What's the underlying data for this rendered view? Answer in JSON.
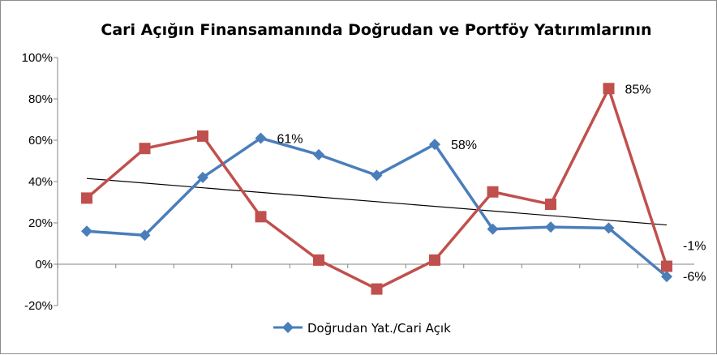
{
  "chart_data": {
    "type": "line",
    "title": "Cari Açığın Finansamanında Doğrudan ve Portföy Yatırımlarının",
    "xlabel": "",
    "ylabel": "",
    "ylim": [
      -20,
      100
    ],
    "yticks": [
      "100%",
      "80%",
      "60%",
      "40%",
      "20%",
      "0%",
      "-20%"
    ],
    "ytick_values": [
      100,
      80,
      60,
      40,
      20,
      0,
      -20
    ],
    "grid": false,
    "legend_position": "bottom",
    "x": [
      1,
      2,
      3,
      4,
      5,
      6,
      7,
      8,
      9,
      10,
      11
    ],
    "series": [
      {
        "name": "Doğrudan Yat./Cari Açık",
        "color": "#4a7ebb",
        "marker": "diamond",
        "values": [
          16,
          14,
          42,
          61,
          53,
          43,
          58,
          17,
          18,
          17.5,
          -6
        ]
      },
      {
        "color": "#c0504d",
        "marker": "square",
        "values": [
          32,
          56,
          62,
          23,
          2,
          -12,
          2,
          35,
          29,
          85,
          -1
        ]
      }
    ],
    "trendline": {
      "color": "#000000",
      "start": 41.5,
      "end": 19
    },
    "data_labels": [
      {
        "series": 0,
        "index": 3,
        "text": "61%"
      },
      {
        "series": 0,
        "index": 6,
        "text": "58%"
      },
      {
        "series": 1,
        "index": 9,
        "text": "85%"
      },
      {
        "series": 1,
        "index": 10,
        "text": "-1%"
      },
      {
        "series": 0,
        "index": 10,
        "text": "-6%"
      }
    ]
  }
}
